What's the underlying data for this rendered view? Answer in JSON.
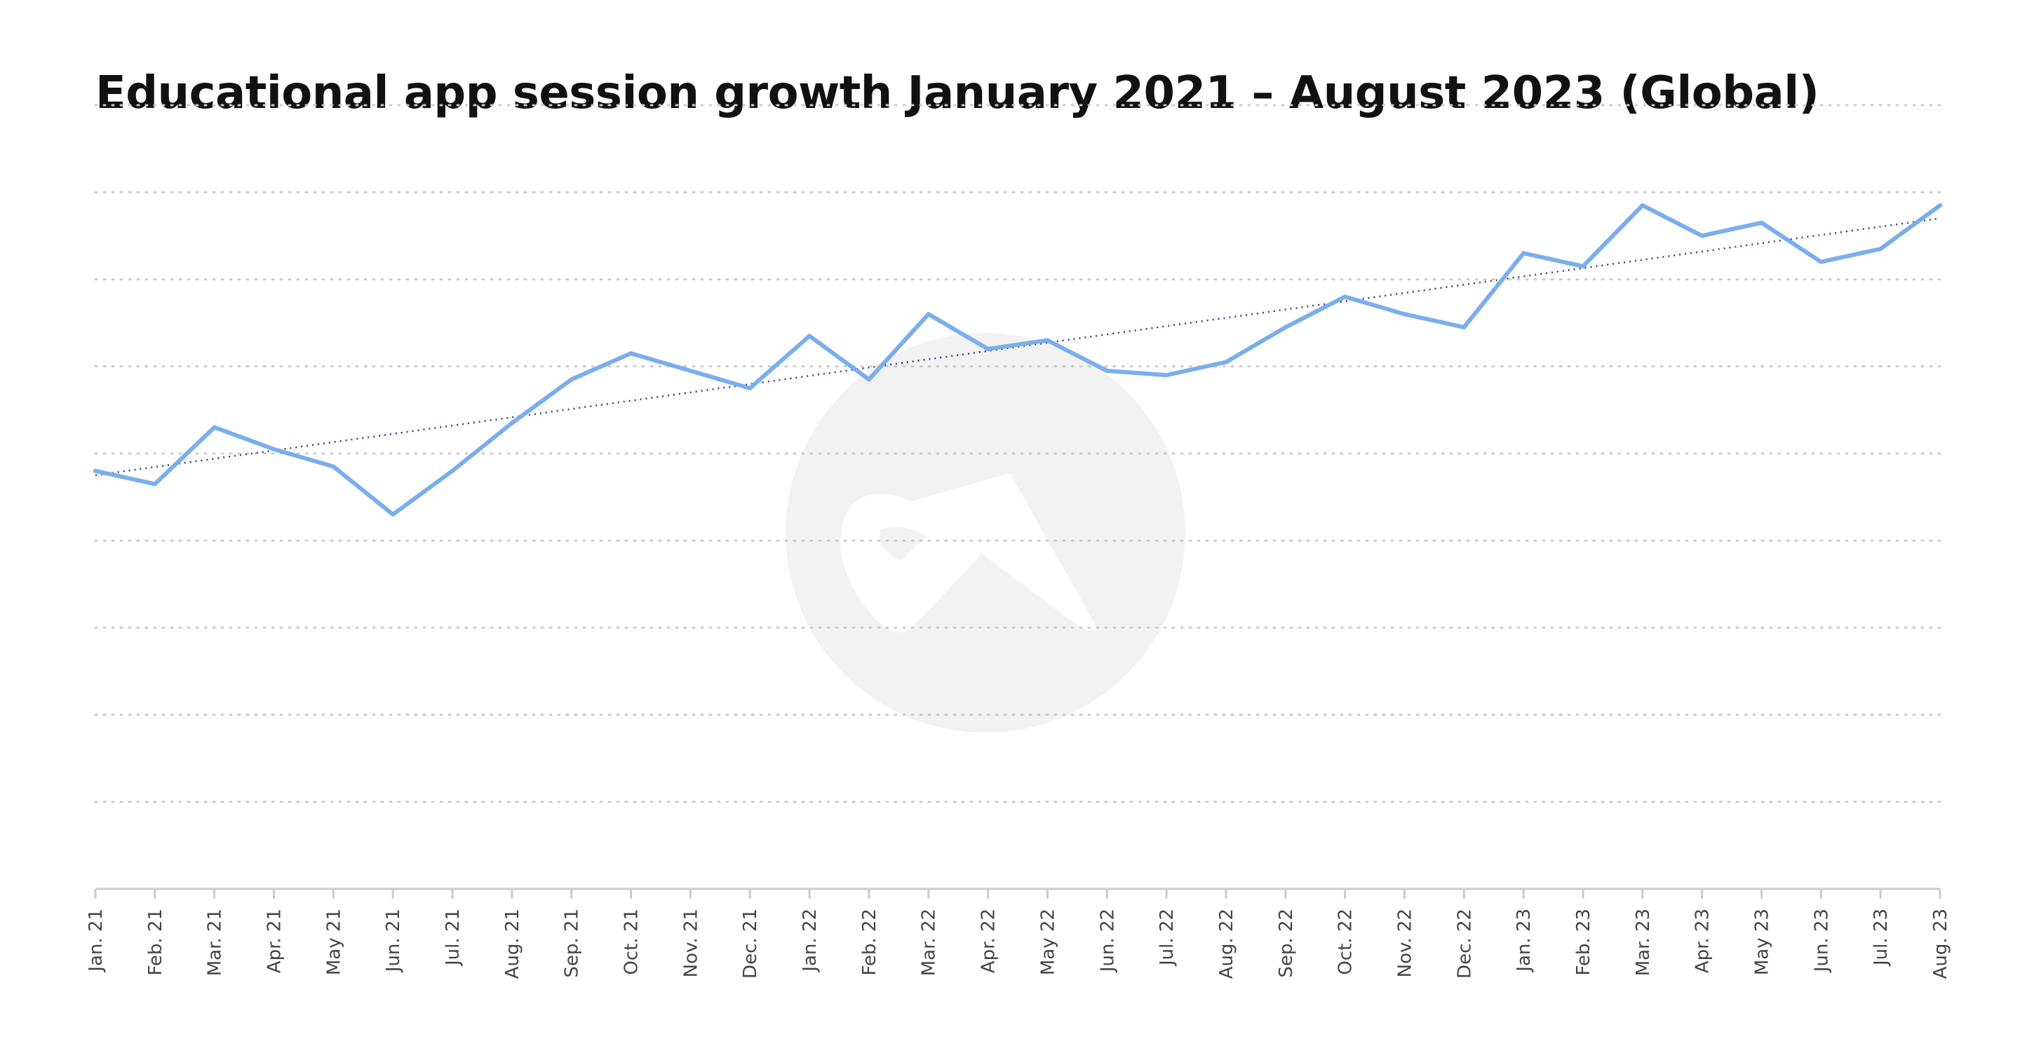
{
  "chart_data": {
    "type": "line",
    "title": "Educational app session growth January 2021 – August 2023 (Global)",
    "categories": [
      "Jan. 21",
      "Feb. 21",
      "Mar. 21",
      "Apr. 21",
      "May 21",
      "Jun. 21",
      "Jul. 21",
      "Aug. 21",
      "Sep. 21",
      "Oct. 21",
      "Nov. 21",
      "Dec. 21",
      "Jan. 22",
      "Feb. 22",
      "Mar. 22",
      "Apr. 22",
      "May 22",
      "Jun. 22",
      "Jul. 22",
      "Aug. 22",
      "Sep. 22",
      "Oct. 22",
      "Nov. 22",
      "Dec. 22",
      "Jan. 23",
      "Feb. 23",
      "Mar. 23",
      "Apr. 23",
      "May 23",
      "Jun. 23",
      "Jul. 23",
      "Aug. 23"
    ],
    "series": [
      {
        "values": [
          4.8,
          4.65,
          5.3,
          5.05,
          4.85,
          4.3,
          4.8,
          5.35,
          5.85,
          6.15,
          5.95,
          5.75,
          6.35,
          5.85,
          6.6,
          6.2,
          6.3,
          5.95,
          5.9,
          6.05,
          6.45,
          6.8,
          6.6,
          6.45,
          7.3,
          7.15,
          7.85,
          7.5,
          7.65,
          7.2,
          7.35,
          7.85
        ],
        "color": "#7aaeec"
      }
    ],
    "trendline": {
      "start": 4.75,
      "end": 7.7,
      "color": "#3a3a8c",
      "style": "dotted"
    },
    "ylim": [
      0,
      9
    ],
    "y_gridlines": [
      1,
      2,
      3,
      4,
      5,
      6,
      7,
      8,
      9
    ],
    "grid": true,
    "legend": "none",
    "xlabel": "",
    "ylabel": "",
    "watermark": "logo-mark",
    "colors": {
      "line": "#7aaeec",
      "trend": "#3a3a8c",
      "grid": "#cccccc",
      "axis": "#cccccc",
      "watermark": "#f2f2f2"
    }
  }
}
